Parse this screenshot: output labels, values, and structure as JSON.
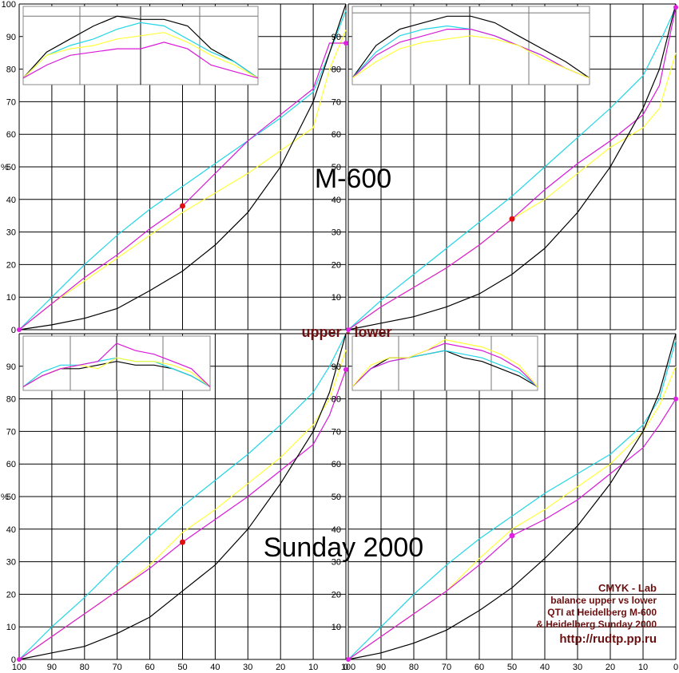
{
  "colors": {
    "cyan": "#22d6e6",
    "magenta": "#d81ad8",
    "yellow": "#ffff3a",
    "black": "#000000",
    "marker_red": "#e01010",
    "marker_magenta": "#e020e0",
    "note": "#6b1010"
  },
  "labels": {
    "top_title": "M-600",
    "middle_label": "upper - lower",
    "bottom_title": "Sunday 2000",
    "note_line1": "CMYK - Lab",
    "note_line2": "balance upper vs lower",
    "note_line3": "QTI at Heidelberg M-600",
    "note_line4": "& Heidelberg Sunday 2000",
    "url": "http://rudtp.pp.ru"
  },
  "chart_data": [
    {
      "type": "line",
      "panel": "top-left",
      "xlim": [
        100,
        0
      ],
      "ylim": [
        0,
        100
      ],
      "ylabel": "%",
      "x": [
        100,
        90,
        80,
        70,
        60,
        50,
        40,
        30,
        20,
        10,
        5,
        0
      ],
      "series": [
        {
          "color": "cyan",
          "values": [
            0,
            10,
            20,
            29,
            37,
            44,
            51,
            58,
            65,
            73,
            85,
            98
          ]
        },
        {
          "color": "magenta",
          "values": [
            0,
            8,
            16,
            23,
            31,
            38,
            48,
            58,
            66,
            74,
            88,
            88
          ]
        },
        {
          "color": "yellow",
          "values": [
            0,
            8,
            15,
            22,
            29,
            36,
            42,
            48,
            55,
            62,
            80,
            92
          ]
        },
        {
          "color": "black",
          "values": [
            0,
            1.5,
            3.5,
            6.5,
            12,
            18,
            26,
            36,
            50,
            70,
            85,
            100
          ]
        }
      ],
      "marker": {
        "x": 50,
        "y": 38,
        "color": "marker_red"
      }
    },
    {
      "type": "line",
      "panel": "top-right",
      "xlim": [
        100,
        0
      ],
      "ylim": [
        0,
        100
      ],
      "ylabel": "%",
      "x": [
        100,
        90,
        80,
        70,
        60,
        50,
        40,
        30,
        20,
        10,
        5,
        0
      ],
      "series": [
        {
          "color": "cyan",
          "values": [
            0,
            9,
            17,
            25,
            33,
            41,
            50,
            59,
            68,
            78,
            88,
            99
          ]
        },
        {
          "color": "magenta",
          "values": [
            0,
            7,
            13,
            19,
            26,
            34,
            43,
            51,
            58,
            66,
            75,
            99
          ]
        },
        {
          "color": "yellow",
          "values": [
            0,
            7,
            13,
            19,
            26,
            34,
            40,
            48,
            56,
            62,
            68,
            85
          ]
        },
        {
          "color": "black",
          "values": [
            0,
            2,
            4,
            7,
            11,
            17,
            25,
            36,
            50,
            68,
            80,
            100
          ]
        }
      ],
      "marker": {
        "x": 50,
        "y": 34,
        "color": "marker_red"
      }
    },
    {
      "type": "line",
      "panel": "bottom-left",
      "xlim": [
        100,
        0
      ],
      "ylim": [
        0,
        100
      ],
      "ylabel": "%",
      "x": [
        100,
        90,
        80,
        70,
        60,
        50,
        40,
        30,
        20,
        10,
        5,
        0
      ],
      "series": [
        {
          "color": "cyan",
          "values": [
            0,
            10,
            19,
            29,
            38,
            47,
            55,
            63,
            72,
            82,
            90,
            100
          ]
        },
        {
          "color": "magenta",
          "values": [
            0,
            7,
            14,
            21,
            28,
            36,
            43,
            50,
            58,
            66,
            75,
            89
          ]
        },
        {
          "color": "yellow",
          "values": [
            0,
            7,
            14,
            21,
            29,
            39,
            46,
            54,
            62,
            72,
            80,
            95
          ]
        },
        {
          "color": "black",
          "values": [
            0,
            2,
            4,
            8,
            13,
            21,
            29,
            40,
            54,
            70,
            82,
            100
          ]
        }
      ],
      "marker": {
        "x": 50,
        "y": 36,
        "color": "marker_red"
      }
    },
    {
      "type": "line",
      "panel": "bottom-right",
      "xlim": [
        100,
        0
      ],
      "ylim": [
        0,
        100
      ],
      "ylabel": "%",
      "x": [
        100,
        90,
        80,
        70,
        60,
        50,
        40,
        30,
        20,
        10,
        5,
        0
      ],
      "series": [
        {
          "color": "cyan",
          "values": [
            0,
            10,
            20,
            29,
            37,
            44,
            51,
            57,
            63,
            72,
            80,
            98
          ]
        },
        {
          "color": "magenta",
          "values": [
            0,
            7,
            14,
            21,
            29,
            38,
            43,
            49,
            57,
            65,
            72,
            80
          ]
        },
        {
          "color": "yellow",
          "values": [
            0,
            7,
            14,
            21,
            31,
            40,
            46,
            53,
            60,
            70,
            78,
            90
          ]
        },
        {
          "color": "black",
          "values": [
            0,
            2,
            5,
            9,
            15,
            22,
            31,
            41,
            54,
            70,
            82,
            100
          ]
        }
      ],
      "marker": {
        "x": 50,
        "y": 38,
        "color": "marker_magenta"
      }
    }
  ],
  "ticks": {
    "x": [
      "100",
      "90",
      "80",
      "70",
      "60",
      "50",
      "40",
      "30",
      "20",
      "10",
      "0"
    ],
    "y": [
      "100",
      "90",
      "80",
      "70",
      "60",
      "50",
      "40",
      "30",
      "20",
      "10",
      "0"
    ],
    "y_unit": "%"
  },
  "insets": [
    {
      "panel": "top-left",
      "series": {
        "black": [
          76,
          84,
          88,
          92,
          95,
          94,
          94,
          92,
          85,
          81,
          76
        ],
        "cyan": [
          76,
          83,
          86,
          88,
          91,
          93,
          92,
          88,
          84,
          81,
          76
        ],
        "yellow": [
          76,
          83,
          85,
          86,
          88,
          89,
          90,
          87,
          83,
          80,
          76
        ],
        "magenta": [
          76,
          80,
          83,
          84,
          85,
          85,
          87,
          85,
          80,
          78,
          76
        ]
      }
    },
    {
      "panel": "top-right",
      "series": {
        "black": [
          76,
          86,
          91,
          93,
          95,
          95,
          93,
          89,
          85,
          81,
          76
        ],
        "cyan": [
          76,
          84,
          89,
          91,
          92,
          91,
          89,
          86,
          83,
          79,
          76
        ],
        "magenta": [
          76,
          83,
          87,
          89,
          91,
          91,
          89,
          86,
          83,
          79,
          76
        ],
        "yellow": [
          76,
          81,
          85,
          87,
          88,
          89,
          88,
          86,
          82,
          79,
          76
        ]
      }
    },
    {
      "panel": "bottom-left",
      "series": {
        "black": [
          83,
          86,
          88,
          88,
          89,
          90,
          89,
          89,
          88,
          86,
          83
        ],
        "cyan": [
          83,
          87,
          89,
          89,
          90,
          91,
          90,
          90,
          88,
          86,
          83
        ],
        "yellow": [
          83,
          86,
          88,
          89,
          88,
          91,
          90,
          90,
          89,
          87,
          83
        ],
        "magenta": [
          83,
          86,
          88,
          89,
          90,
          95,
          93,
          92,
          90,
          88,
          83
        ]
      }
    },
    {
      "panel": "bottom-right",
      "series": {
        "black": [
          83,
          88,
          91,
          91,
          92,
          93,
          91,
          90,
          88,
          86,
          83
        ],
        "cyan": [
          83,
          88,
          90,
          91,
          92,
          93,
          92,
          91,
          89,
          87,
          83
        ],
        "magenta": [
          83,
          88,
          90,
          91,
          93,
          95,
          94,
          93,
          91,
          88,
          83
        ],
        "yellow": [
          83,
          89,
          91,
          91,
          93,
          96,
          95,
          94,
          92,
          89,
          83
        ]
      }
    }
  ]
}
